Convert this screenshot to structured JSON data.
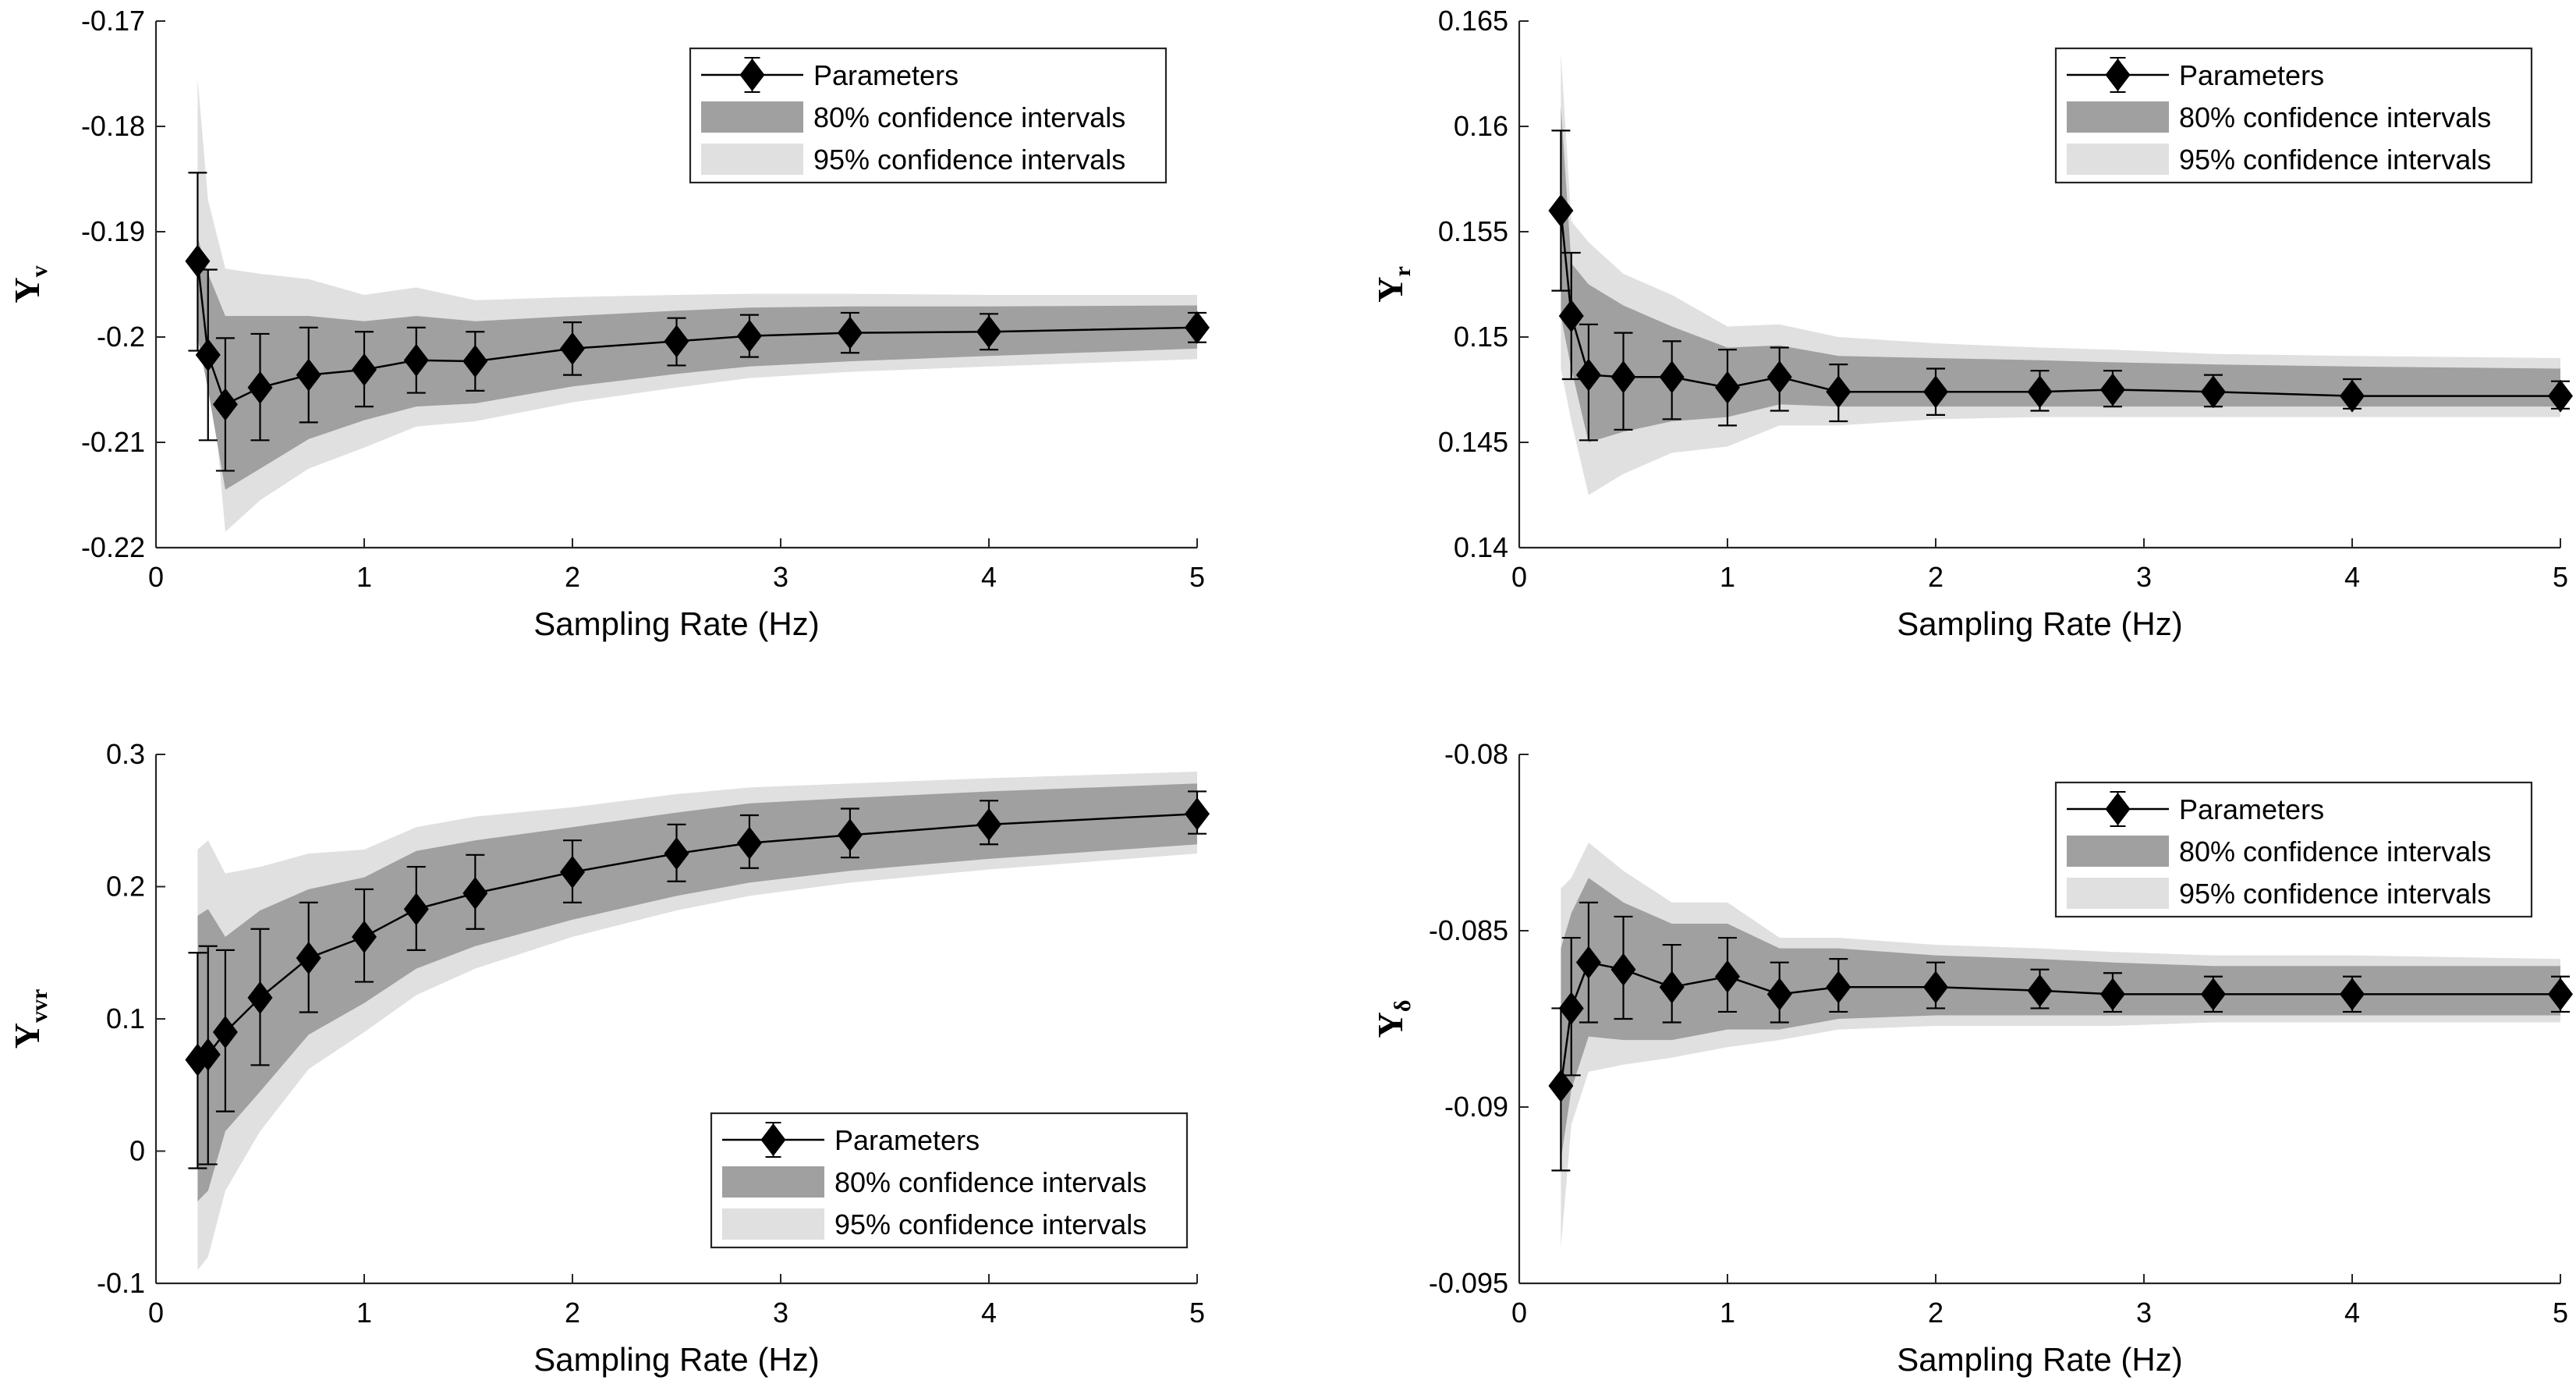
{
  "chart_data": [
    {
      "type": "line",
      "panel": "top-left",
      "ylabel": "Y",
      "ylabel_sub": "v",
      "xlabel": "Sampling Rate (Hz)",
      "xlim": [
        0,
        5
      ],
      "ylim": [
        -0.22,
        -0.17
      ],
      "xticks": [
        0,
        1,
        2,
        3,
        4,
        5
      ],
      "xtick_labels": [
        "0",
        "1",
        "2",
        "3",
        "4",
        "5"
      ],
      "yticks": [
        -0.22,
        -0.21,
        -0.2,
        -0.19,
        -0.18,
        -0.17
      ],
      "ytick_labels": [
        "-0.22",
        "-0.21",
        "-0.2",
        "-0.19",
        "-0.18",
        "-0.17"
      ],
      "legend": [
        "Parameters",
        "80% confidence intervals",
        "95% confidence intervals"
      ],
      "legend_position": "top-right",
      "x": [
        0.2,
        0.25,
        0.333,
        0.5,
        0.733,
        1.0,
        1.25,
        1.533,
        2.0,
        2.5,
        2.85,
        3.333,
        4.0,
        5.0
      ],
      "values": [
        -0.1928,
        -0.2017,
        -0.2064,
        -0.2048,
        -0.2036,
        -0.2031,
        -0.2022,
        -0.2023,
        -0.2011,
        -0.2004,
        -0.1999,
        -0.1996,
        -0.1995,
        -0.1991
      ],
      "err_lower": [
        -0.2013,
        -0.2098,
        -0.2127,
        -0.2098,
        -0.2081,
        -0.2066,
        -0.2053,
        -0.2051,
        -0.2036,
        -0.2027,
        -0.2019,
        -0.2015,
        -0.2012,
        -0.2005
      ],
      "err_upper": [
        -0.1844,
        -0.1936,
        -0.2001,
        -0.1997,
        -0.1991,
        -0.1995,
        -0.1991,
        -0.1995,
        -0.1986,
        -0.1982,
        -0.1979,
        -0.1977,
        -0.1978,
        -0.1977
      ],
      "ci80_lower": [
        -0.2,
        -0.205,
        -0.2145,
        -0.2125,
        -0.2097,
        -0.2079,
        -0.2066,
        -0.2063,
        -0.2047,
        -0.2035,
        -0.2028,
        -0.2023,
        -0.2018,
        -0.2011
      ],
      "ci80_upper": [
        -0.1905,
        -0.194,
        -0.198,
        -0.198,
        -0.198,
        -0.1985,
        -0.198,
        -0.1985,
        -0.198,
        -0.1975,
        -0.1972,
        -0.1971,
        -0.1971,
        -0.197
      ],
      "ci95_lower": [
        -0.2015,
        -0.2,
        -0.2185,
        -0.2155,
        -0.2125,
        -0.2105,
        -0.2085,
        -0.208,
        -0.2062,
        -0.2048,
        -0.2039,
        -0.2033,
        -0.2028,
        -0.2021
      ],
      "ci95_upper": [
        -0.1755,
        -0.187,
        -0.1935,
        -0.194,
        -0.1945,
        -0.196,
        -0.1953,
        -0.1965,
        -0.1962,
        -0.196,
        -0.1959,
        -0.1959,
        -0.196,
        -0.196
      ]
    },
    {
      "type": "line",
      "panel": "top-right",
      "ylabel": "Y",
      "ylabel_sub": "r",
      "xlabel": "Sampling Rate (Hz)",
      "xlim": [
        0,
        5
      ],
      "ylim": [
        0.14,
        0.165
      ],
      "xticks": [
        0,
        1,
        2,
        3,
        4,
        5
      ],
      "xtick_labels": [
        "0",
        "1",
        "2",
        "3",
        "4",
        "5"
      ],
      "yticks": [
        0.14,
        0.145,
        0.15,
        0.155,
        0.16,
        0.165
      ],
      "ytick_labels": [
        "0.14",
        "0.145",
        "0.15",
        "0.155",
        "0.16",
        "0.165"
      ],
      "legend": [
        "Parameters",
        "80% confidence intervals",
        "95% confidence intervals"
      ],
      "legend_position": "top-right",
      "x": [
        0.2,
        0.25,
        0.333,
        0.5,
        0.733,
        1.0,
        1.25,
        1.533,
        2.0,
        2.5,
        2.85,
        3.333,
        4.0,
        5.0
      ],
      "values": [
        0.156,
        0.151,
        0.1482,
        0.1481,
        0.1481,
        0.1476,
        0.1481,
        0.1474,
        0.1474,
        0.1474,
        0.1475,
        0.1474,
        0.1472,
        0.1472
      ],
      "err_lower": [
        0.1522,
        0.148,
        0.1451,
        0.1456,
        0.1461,
        0.1458,
        0.1465,
        0.146,
        0.1463,
        0.1465,
        0.1467,
        0.1467,
        0.1466,
        0.1466
      ],
      "err_upper": [
        0.1598,
        0.154,
        0.1506,
        0.1502,
        0.1498,
        0.1494,
        0.1495,
        0.1487,
        0.1485,
        0.1484,
        0.1484,
        0.1482,
        0.148,
        0.1479
      ],
      "ci80_lower": [
        0.151,
        0.1485,
        0.145,
        0.1455,
        0.146,
        0.1462,
        0.1468,
        0.1467,
        0.1467,
        0.1467,
        0.1467,
        0.1467,
        0.1467,
        0.1467
      ],
      "ci80_upper": [
        0.161,
        0.1535,
        0.1525,
        0.1515,
        0.1505,
        0.1495,
        0.1496,
        0.1491,
        0.149,
        0.1489,
        0.1488,
        0.1487,
        0.1486,
        0.1485
      ],
      "ci95_lower": [
        0.1485,
        0.146,
        0.1425,
        0.1435,
        0.1445,
        0.1448,
        0.1458,
        0.1458,
        0.1461,
        0.1462,
        0.1462,
        0.1462,
        0.1462,
        0.1462
      ],
      "ci95_upper": [
        0.1635,
        0.1555,
        0.1545,
        0.153,
        0.152,
        0.1505,
        0.1506,
        0.15,
        0.1497,
        0.1495,
        0.1494,
        0.1492,
        0.1491,
        0.149
      ]
    },
    {
      "type": "line",
      "panel": "bottom-left",
      "ylabel": "Y",
      "ylabel_sub": "vvr",
      "xlabel": "Sampling Rate (Hz)",
      "xlim": [
        0,
        5
      ],
      "ylim": [
        -0.1,
        0.3
      ],
      "xticks": [
        0,
        1,
        2,
        3,
        4,
        5
      ],
      "xtick_labels": [
        "0",
        "1",
        "2",
        "3",
        "4",
        "5"
      ],
      "yticks": [
        -0.1,
        0,
        0.1,
        0.2,
        0.3
      ],
      "ytick_labels": [
        "-0.1",
        "0",
        "0.1",
        "0.2",
        "0.3"
      ],
      "legend": [
        "Parameters",
        "80% confidence intervals",
        "95% confidence intervals"
      ],
      "legend_position": "bottom-right",
      "x": [
        0.2,
        0.25,
        0.333,
        0.5,
        0.733,
        1.0,
        1.25,
        1.533,
        2.0,
        2.5,
        2.85,
        3.333,
        4.0,
        5.0
      ],
      "values": [
        0.069,
        0.073,
        0.09,
        0.116,
        0.146,
        0.162,
        0.183,
        0.195,
        0.211,
        0.225,
        0.233,
        0.239,
        0.247,
        0.255
      ],
      "err_lower": [
        -0.013,
        -0.01,
        0.03,
        0.065,
        0.105,
        0.128,
        0.152,
        0.168,
        0.188,
        0.204,
        0.214,
        0.222,
        0.232,
        0.24
      ],
      "err_upper": [
        0.15,
        0.155,
        0.152,
        0.168,
        0.188,
        0.198,
        0.215,
        0.224,
        0.235,
        0.247,
        0.254,
        0.259,
        0.265,
        0.272
      ],
      "ci80_lower": [
        -0.038,
        -0.03,
        0.015,
        0.045,
        0.088,
        0.112,
        0.138,
        0.155,
        0.175,
        0.193,
        0.203,
        0.212,
        0.221,
        0.232
      ],
      "ci80_upper": [
        0.178,
        0.183,
        0.162,
        0.182,
        0.198,
        0.207,
        0.227,
        0.235,
        0.245,
        0.256,
        0.263,
        0.267,
        0.272,
        0.278
      ],
      "ci95_lower": [
        -0.09,
        -0.08,
        -0.03,
        0.015,
        0.062,
        0.09,
        0.118,
        0.138,
        0.162,
        0.182,
        0.193,
        0.203,
        0.213,
        0.225
      ],
      "ci95_upper": [
        0.228,
        0.235,
        0.21,
        0.215,
        0.225,
        0.228,
        0.245,
        0.253,
        0.26,
        0.27,
        0.275,
        0.278,
        0.282,
        0.287
      ]
    },
    {
      "type": "line",
      "panel": "bottom-right",
      "ylabel": "Y",
      "ylabel_sub": "δ",
      "xlabel": "Sampling Rate (Hz)",
      "xlim": [
        0,
        5
      ],
      "ylim": [
        -0.095,
        -0.08
      ],
      "xticks": [
        0,
        1,
        2,
        3,
        4,
        5
      ],
      "xtick_labels": [
        "0",
        "1",
        "2",
        "3",
        "4",
        "5"
      ],
      "yticks": [
        -0.095,
        -0.09,
        -0.085,
        -0.08
      ],
      "ytick_labels": [
        "-0.095",
        "-0.09",
        "-0.085",
        "-0.08"
      ],
      "legend": [
        "Parameters",
        "80% confidence intervals",
        "95% confidence intervals"
      ],
      "legend_position": "top-right",
      "x": [
        0.2,
        0.25,
        0.333,
        0.5,
        0.733,
        1.0,
        1.25,
        1.533,
        2.0,
        2.5,
        2.85,
        3.333,
        4.0,
        5.0
      ],
      "values": [
        -0.0894,
        -0.0872,
        -0.0859,
        -0.0861,
        -0.0866,
        -0.0863,
        -0.0868,
        -0.0866,
        -0.0866,
        -0.0867,
        -0.0868,
        -0.0868,
        -0.0868,
        -0.0868
      ],
      "err_lower": [
        -0.0918,
        -0.0891,
        -0.0876,
        -0.0875,
        -0.0876,
        -0.0873,
        -0.0876,
        -0.0873,
        -0.0872,
        -0.0872,
        -0.0873,
        -0.0873,
        -0.0873,
        -0.0873
      ],
      "err_upper": [
        -0.0872,
        -0.0852,
        -0.0842,
        -0.0846,
        -0.0854,
        -0.0852,
        -0.0859,
        -0.0858,
        -0.0859,
        -0.0861,
        -0.0862,
        -0.0863,
        -0.0863,
        -0.0863
      ],
      "ci80_lower": [
        -0.0915,
        -0.0895,
        -0.088,
        -0.0881,
        -0.0881,
        -0.0878,
        -0.0878,
        -0.0875,
        -0.0874,
        -0.0874,
        -0.0874,
        -0.0874,
        -0.0874,
        -0.0874
      ],
      "ci80_upper": [
        -0.0855,
        -0.0845,
        -0.0835,
        -0.0842,
        -0.0848,
        -0.0848,
        -0.0855,
        -0.0855,
        -0.0857,
        -0.0858,
        -0.0859,
        -0.086,
        -0.086,
        -0.086
      ],
      "ci95_lower": [
        -0.094,
        -0.0905,
        -0.089,
        -0.0888,
        -0.0886,
        -0.0883,
        -0.0881,
        -0.0878,
        -0.0877,
        -0.0877,
        -0.0877,
        -0.0876,
        -0.0876,
        -0.0876
      ],
      "ci95_upper": [
        -0.0838,
        -0.0835,
        -0.0825,
        -0.0833,
        -0.0842,
        -0.0842,
        -0.0852,
        -0.0852,
        -0.0854,
        -0.0855,
        -0.0856,
        -0.0857,
        -0.0857,
        -0.0858
      ]
    }
  ],
  "colors": {
    "ci80": "#a0a0a0",
    "ci95": "#e0e0e0",
    "line": "#000000",
    "axis": "#262626"
  }
}
